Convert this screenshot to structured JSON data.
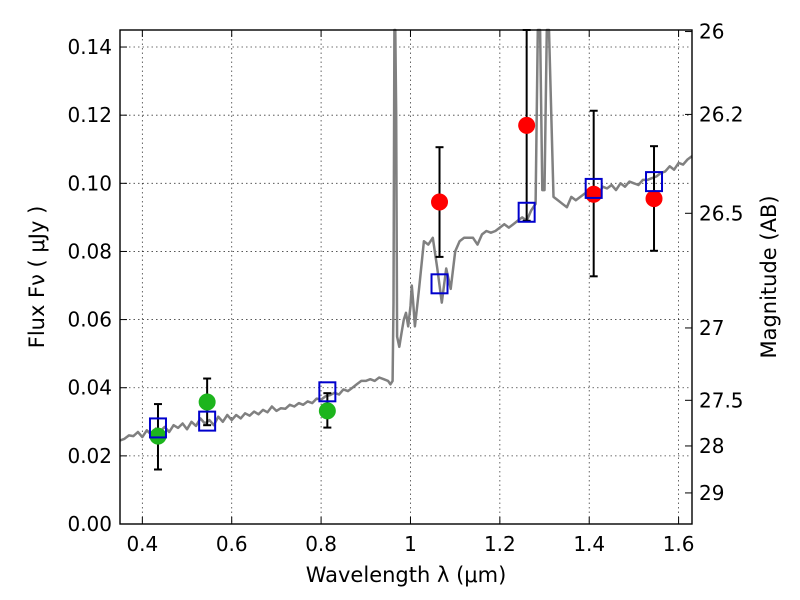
{
  "chart_data": {
    "type": "scatter",
    "xlabel": "Wavelength  λ (μm)",
    "ylabel": "Flux  Fν  ( μJy )",
    "y2label": "Magnitude (AB)",
    "xlim": [
      0.35,
      1.63
    ],
    "ylim": [
      0.0,
      0.145
    ],
    "grid": true,
    "x_ticks": [
      0.4,
      0.6,
      0.8,
      1.0,
      1.2,
      1.4,
      1.6
    ],
    "x_tick_labels": [
      "0.4",
      "0.6",
      "0.8",
      "1",
      "1.2",
      "1.4",
      "1.6"
    ],
    "y_ticks": [
      0.0,
      0.02,
      0.04,
      0.06,
      0.08,
      0.1,
      0.12,
      0.14
    ],
    "y_tick_labels": [
      "0.00",
      "0.02",
      "0.04",
      "0.06",
      "0.08",
      "0.10",
      "0.12",
      "0.14"
    ],
    "y2_ticks": [
      {
        "mag": 26,
        "label": "26"
      },
      {
        "mag": 26.2,
        "label": "26.2"
      },
      {
        "mag": 26.5,
        "label": "26.5"
      },
      {
        "mag": 27,
        "label": "27"
      },
      {
        "mag": 27.5,
        "label": "27.5"
      },
      {
        "mag": 28,
        "label": "28"
      },
      {
        "mag": 29,
        "label": "29"
      }
    ],
    "series": [
      {
        "marker": "circle",
        "color": "#1db51d",
        "points": [
          {
            "x": 0.435,
            "y": 0.0258,
            "err_lo": 0.0098,
            "err_hi": 0.0094
          },
          {
            "x": 0.545,
            "y": 0.0358,
            "err_lo": 0.0068,
            "err_hi": 0.0069
          },
          {
            "x": 0.814,
            "y": 0.0332,
            "err_lo": 0.0049,
            "err_hi": 0.0052
          }
        ]
      },
      {
        "marker": "circle",
        "color": "#ff0000",
        "points": [
          {
            "x": 1.065,
            "y": 0.0945,
            "err_lo": 0.0161,
            "err_hi": 0.0161
          },
          {
            "x": 1.26,
            "y": 0.117,
            "err_lo": 0.028,
            "err_hi": 0.028
          },
          {
            "x": 1.41,
            "y": 0.0968,
            "err_lo": 0.0241,
            "err_hi": 0.0245
          },
          {
            "x": 1.545,
            "y": 0.0955,
            "err_lo": 0.0153,
            "err_hi": 0.0154
          }
        ]
      },
      {
        "marker": "open-square",
        "color": "#0000cc",
        "points": [
          {
            "x": 0.435,
            "y": 0.0282
          },
          {
            "x": 0.545,
            "y": 0.0302
          },
          {
            "x": 0.814,
            "y": 0.0388
          },
          {
            "x": 1.065,
            "y": 0.0705
          },
          {
            "x": 1.26,
            "y": 0.0915
          },
          {
            "x": 1.41,
            "y": 0.0985
          },
          {
            "x": 1.545,
            "y": 0.1005
          }
        ]
      }
    ],
    "spectrum": {
      "color": "#808080",
      "x": [
        0.35,
        0.36,
        0.37,
        0.38,
        0.39,
        0.4,
        0.41,
        0.42,
        0.43,
        0.44,
        0.45,
        0.46,
        0.47,
        0.48,
        0.49,
        0.5,
        0.51,
        0.52,
        0.53,
        0.54,
        0.55,
        0.56,
        0.57,
        0.58,
        0.59,
        0.6,
        0.61,
        0.62,
        0.63,
        0.64,
        0.65,
        0.66,
        0.67,
        0.68,
        0.69,
        0.7,
        0.71,
        0.72,
        0.73,
        0.74,
        0.75,
        0.76,
        0.77,
        0.78,
        0.79,
        0.8,
        0.81,
        0.82,
        0.83,
        0.84,
        0.85,
        0.86,
        0.87,
        0.88,
        0.89,
        0.9,
        0.91,
        0.92,
        0.93,
        0.94,
        0.95,
        0.955,
        0.96,
        0.962,
        0.964,
        0.966,
        0.968,
        0.97,
        0.975,
        0.98,
        0.985,
        0.99,
        0.995,
        1.0,
        1.003,
        1.006,
        1.01,
        1.015,
        1.02,
        1.03,
        1.04,
        1.05,
        1.06,
        1.07,
        1.08,
        1.09,
        1.1,
        1.11,
        1.12,
        1.13,
        1.14,
        1.15,
        1.16,
        1.17,
        1.18,
        1.19,
        1.2,
        1.21,
        1.22,
        1.23,
        1.24,
        1.25,
        1.26,
        1.27,
        1.28,
        1.285,
        1.29,
        1.295,
        1.3,
        1.305,
        1.31,
        1.32,
        1.33,
        1.34,
        1.35,
        1.36,
        1.37,
        1.38,
        1.39,
        1.4,
        1.41,
        1.42,
        1.43,
        1.44,
        1.45,
        1.46,
        1.47,
        1.48,
        1.49,
        1.5,
        1.51,
        1.52,
        1.53,
        1.54,
        1.55,
        1.56,
        1.57,
        1.58,
        1.59,
        1.6,
        1.61,
        1.62,
        1.63
      ],
      "y": [
        0.0245,
        0.025,
        0.026,
        0.0258,
        0.027,
        0.0255,
        0.0275,
        0.0262,
        0.028,
        0.0272,
        0.0285,
        0.027,
        0.029,
        0.0282,
        0.0295,
        0.0278,
        0.03,
        0.0288,
        0.031,
        0.0295,
        0.0305,
        0.029,
        0.0315,
        0.03,
        0.032,
        0.0305,
        0.032,
        0.031,
        0.0325,
        0.0318,
        0.033,
        0.0322,
        0.0335,
        0.0328,
        0.0345,
        0.0332,
        0.034,
        0.0338,
        0.035,
        0.0345,
        0.0355,
        0.035,
        0.036,
        0.0355,
        0.0368,
        0.0365,
        0.0375,
        0.0378,
        0.0385,
        0.038,
        0.0395,
        0.039,
        0.04,
        0.041,
        0.042,
        0.042,
        0.0425,
        0.042,
        0.043,
        0.0425,
        0.042,
        0.041,
        0.042,
        0.065,
        0.145,
        0.145,
        0.12,
        0.055,
        0.052,
        0.056,
        0.06,
        0.062,
        0.058,
        0.064,
        0.07,
        0.065,
        0.058,
        0.064,
        0.07,
        0.083,
        0.082,
        0.084,
        0.075,
        0.065,
        0.075,
        0.069,
        0.08,
        0.083,
        0.084,
        0.084,
        0.084,
        0.082,
        0.085,
        0.086,
        0.0855,
        0.086,
        0.087,
        0.088,
        0.087,
        0.088,
        0.089,
        0.09,
        0.089,
        0.092,
        0.094,
        0.145,
        0.145,
        0.098,
        0.098,
        0.145,
        0.145,
        0.096,
        0.095,
        0.094,
        0.093,
        0.096,
        0.095,
        0.096,
        0.097,
        0.0975,
        0.098,
        0.0965,
        0.099,
        0.0985,
        0.0995,
        0.098,
        0.1,
        0.099,
        0.1005,
        0.1,
        0.0995,
        0.101,
        0.101,
        0.1015,
        0.102,
        0.103,
        0.1035,
        0.105,
        0.104,
        0.106,
        0.1055,
        0.107,
        0.108
      ]
    }
  }
}
